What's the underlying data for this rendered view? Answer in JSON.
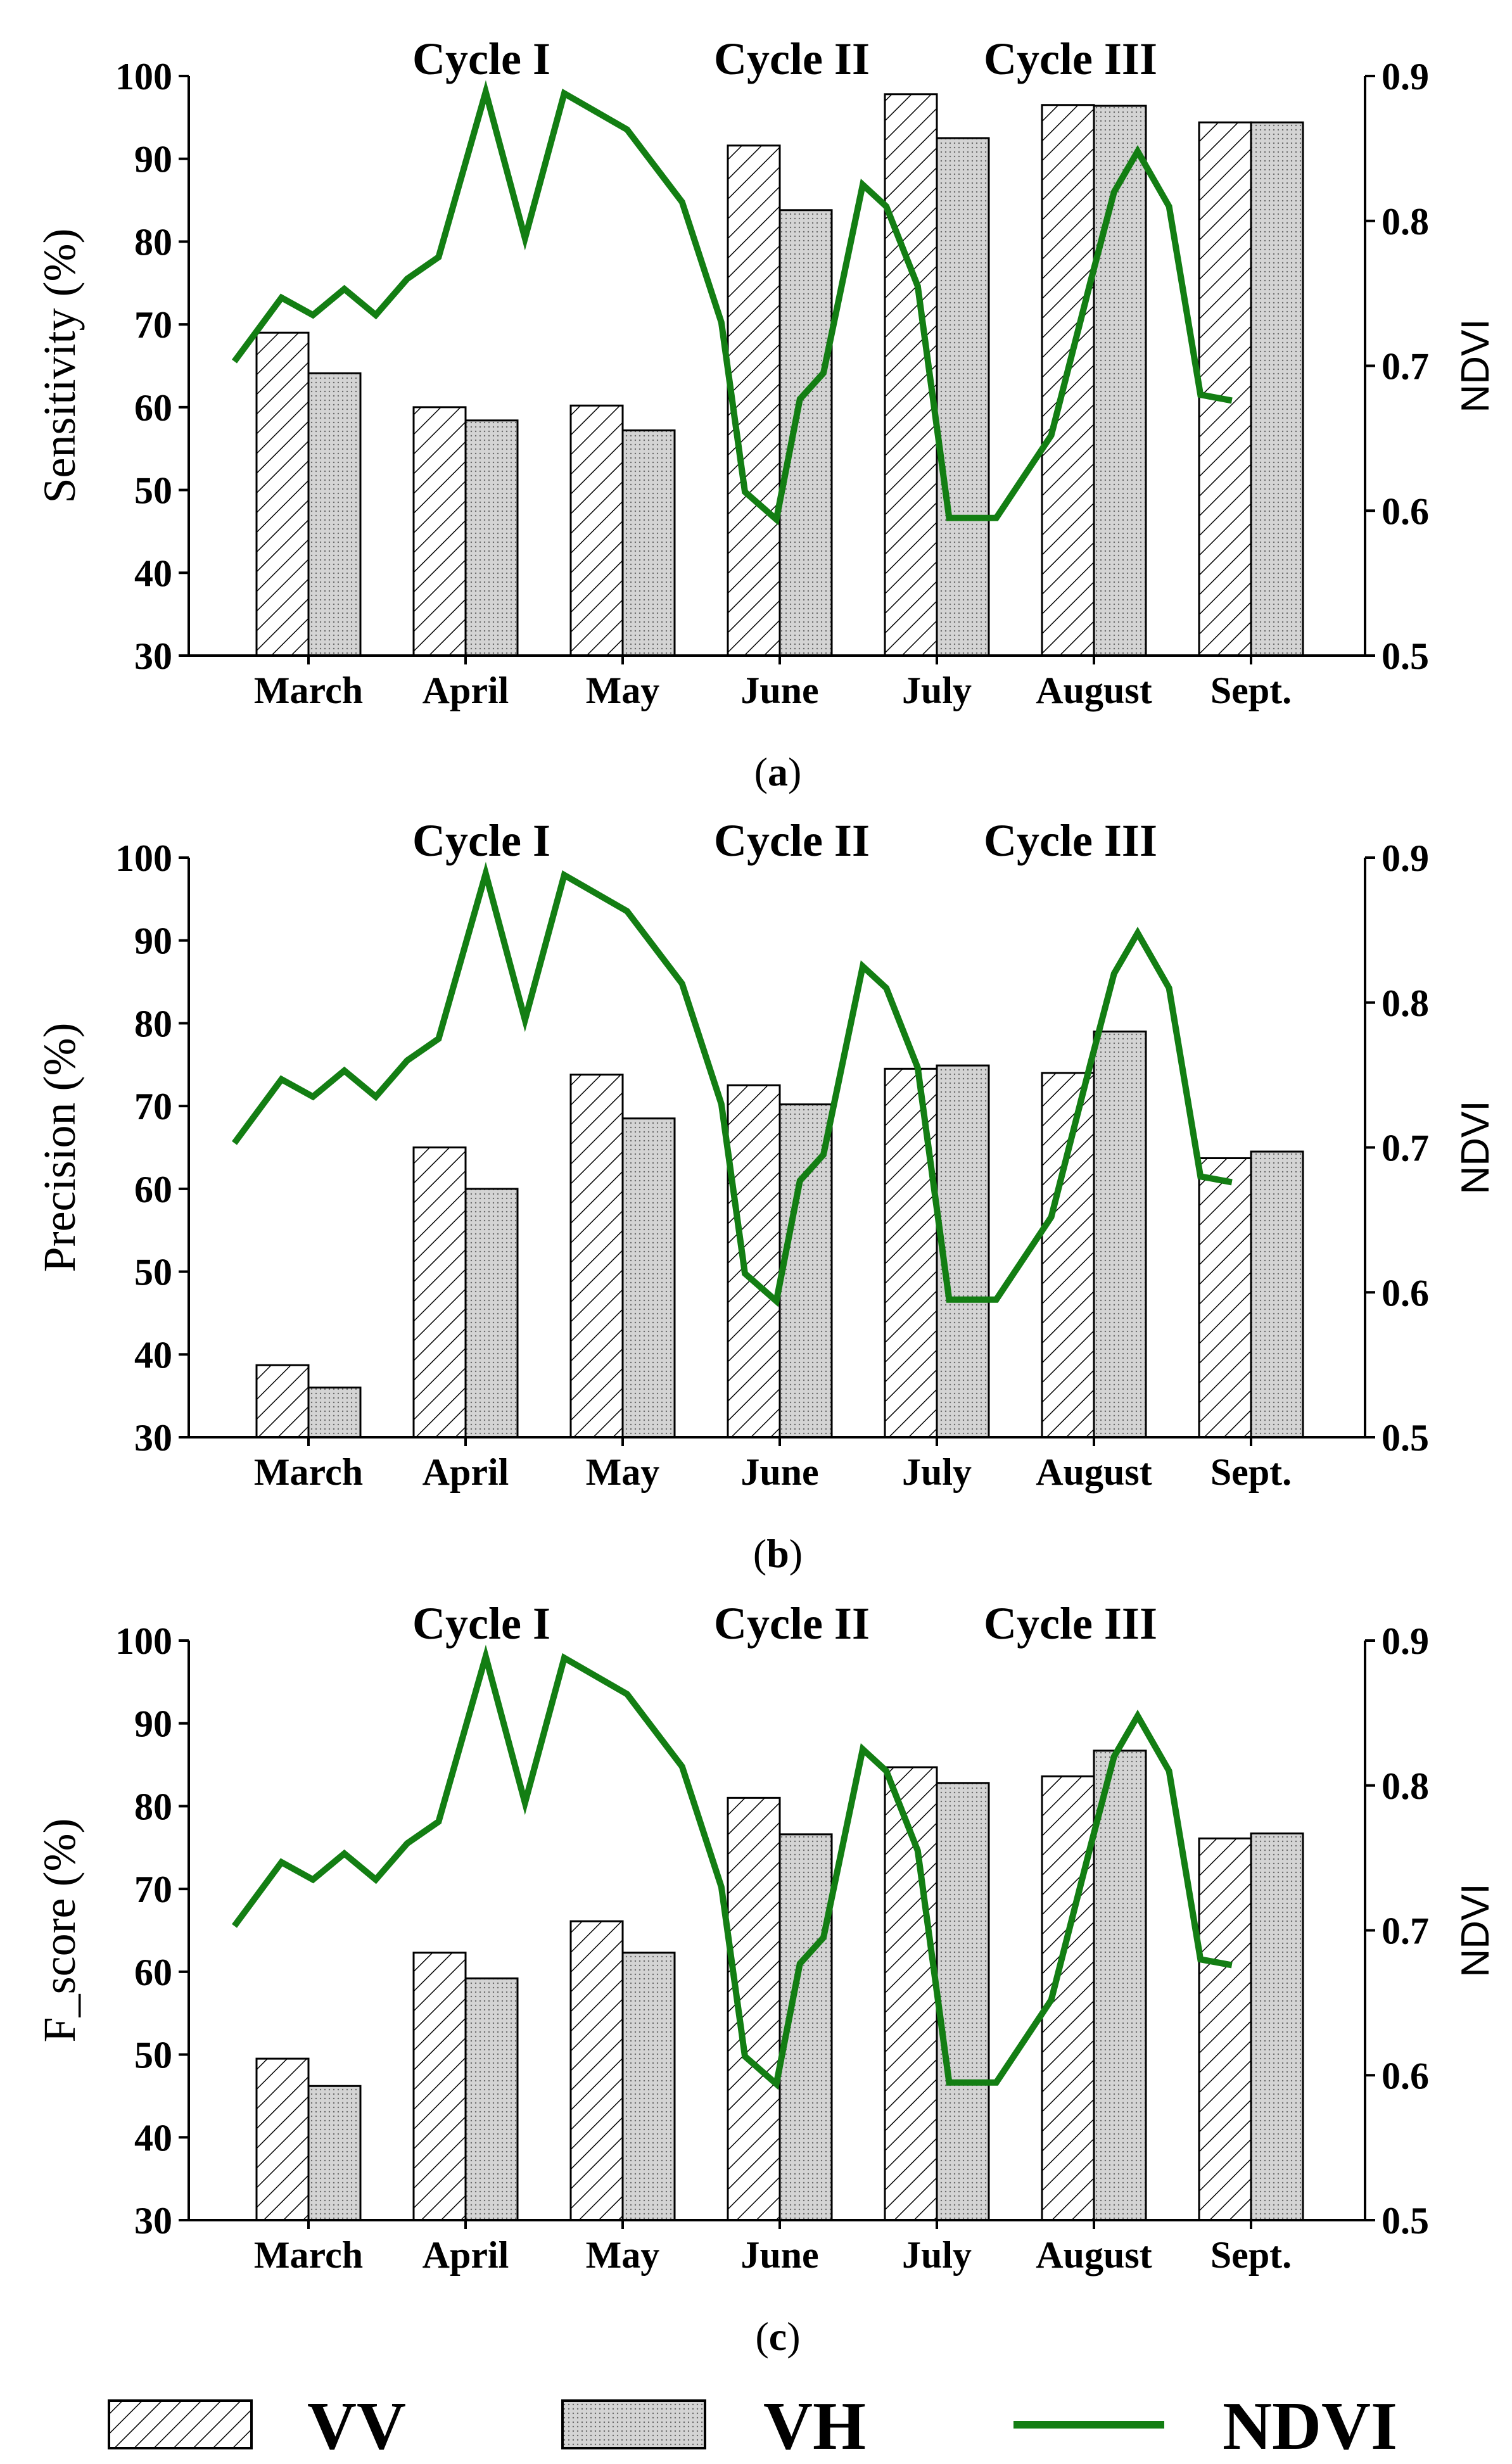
{
  "legend": {
    "vv_label": "VV",
    "vh_label": "VH",
    "ndvi_label": "NDVI"
  },
  "colors": {
    "ndvi_line": "#137e13",
    "vv_fill": "#ffffff",
    "vh_fill": "#d4d4d4",
    "bar_stroke": "#000000"
  },
  "cycle_labels": [
    "Cycle I",
    "Cycle II",
    "Cycle III"
  ],
  "chart_data": [
    {
      "type": "bar",
      "panel": "(a)",
      "ylabel": "Sensitivity (%)",
      "y2label": "NDVI",
      "ylim": [
        30,
        100
      ],
      "y2lim": [
        0.5,
        0.9
      ],
      "yticks": [
        30,
        40,
        50,
        60,
        70,
        80,
        90,
        100
      ],
      "y2ticks": [
        0.5,
        0.6,
        0.7,
        0.8,
        0.9
      ],
      "categories": [
        "March",
        "April",
        "May",
        "June",
        "July",
        "August",
        "Sept."
      ],
      "series": [
        {
          "name": "VV",
          "values": [
            69,
            60,
            60.2,
            91.6,
            97.8,
            96.5,
            94.4
          ]
        },
        {
          "name": "VH",
          "values": [
            64.1,
            58.4,
            57.2,
            83.8,
            92.5,
            96.4,
            94.4
          ]
        }
      ],
      "ndvi": {
        "name": "NDVI",
        "x": [
          0,
          0.3,
          0.5,
          0.7,
          0.9,
          1.1,
          1.3,
          1.6,
          1.85,
          2.1,
          2.5,
          2.85,
          3.1,
          3.25,
          3.45,
          3.6,
          3.75,
          4.0,
          4.15,
          4.35,
          4.55,
          4.85,
          5.2,
          5.45,
          5.6,
          5.75,
          5.95,
          6.15,
          6.35
        ],
        "y": [
          0.703,
          0.747,
          0.735,
          0.753,
          0.735,
          0.76,
          0.775,
          0.889,
          0.788,
          0.888,
          0.863,
          0.813,
          0.73,
          0.613,
          0.594,
          0.677,
          0.695,
          0.825,
          0.81,
          0.755,
          0.595,
          0.595,
          0.652,
          0.758,
          0.82,
          0.848,
          0.81,
          0.68,
          0.676
        ]
      }
    },
    {
      "type": "bar",
      "panel": "(b)",
      "ylabel": "Precision (%)",
      "y2label": "NDVI",
      "ylim": [
        30,
        100
      ],
      "y2lim": [
        0.5,
        0.9
      ],
      "yticks": [
        30,
        40,
        50,
        60,
        70,
        80,
        90,
        100
      ],
      "y2ticks": [
        0.5,
        0.6,
        0.7,
        0.8,
        0.9
      ],
      "categories": [
        "March",
        "April",
        "May",
        "June",
        "July",
        "August",
        "Sept."
      ],
      "series": [
        {
          "name": "VV",
          "values": [
            38.7,
            65,
            73.8,
            72.5,
            74.5,
            74,
            63.7
          ]
        },
        {
          "name": "VH",
          "values": [
            36,
            60,
            68.5,
            70.2,
            74.9,
            79,
            64.5
          ]
        }
      ],
      "ndvi": {
        "name": "NDVI",
        "x": [
          0,
          0.3,
          0.5,
          0.7,
          0.9,
          1.1,
          1.3,
          1.6,
          1.85,
          2.1,
          2.5,
          2.85,
          3.1,
          3.25,
          3.45,
          3.6,
          3.75,
          4.0,
          4.15,
          4.35,
          4.55,
          4.85,
          5.2,
          5.45,
          5.6,
          5.75,
          5.95,
          6.15,
          6.35
        ],
        "y": [
          0.703,
          0.747,
          0.735,
          0.753,
          0.735,
          0.76,
          0.775,
          0.889,
          0.788,
          0.888,
          0.863,
          0.813,
          0.73,
          0.613,
          0.594,
          0.677,
          0.695,
          0.825,
          0.81,
          0.755,
          0.595,
          0.595,
          0.652,
          0.758,
          0.82,
          0.848,
          0.81,
          0.68,
          0.676
        ]
      }
    },
    {
      "type": "bar",
      "panel": "(c)",
      "ylabel": "F_score (%)",
      "y2label": "NDVI",
      "ylim": [
        30,
        100
      ],
      "y2lim": [
        0.5,
        0.9
      ],
      "yticks": [
        30,
        40,
        50,
        60,
        70,
        80,
        90,
        100
      ],
      "y2ticks": [
        0.5,
        0.6,
        0.7,
        0.8,
        0.9
      ],
      "categories": [
        "March",
        "April",
        "May",
        "June",
        "July",
        "August",
        "Sept."
      ],
      "series": [
        {
          "name": "VV",
          "values": [
            49.5,
            62.3,
            66.1,
            81,
            84.7,
            83.6,
            76.1
          ]
        },
        {
          "name": "VH",
          "values": [
            46.2,
            59.2,
            62.3,
            76.6,
            82.8,
            86.7,
            76.7
          ]
        }
      ],
      "ndvi": {
        "name": "NDVI",
        "x": [
          0,
          0.3,
          0.5,
          0.7,
          0.9,
          1.1,
          1.3,
          1.6,
          1.85,
          2.1,
          2.5,
          2.85,
          3.1,
          3.25,
          3.45,
          3.6,
          3.75,
          4.0,
          4.15,
          4.35,
          4.55,
          4.85,
          5.2,
          5.45,
          5.6,
          5.75,
          5.95,
          6.15,
          6.35
        ],
        "y": [
          0.703,
          0.747,
          0.735,
          0.753,
          0.735,
          0.76,
          0.775,
          0.889,
          0.788,
          0.888,
          0.863,
          0.813,
          0.73,
          0.613,
          0.594,
          0.677,
          0.695,
          0.825,
          0.81,
          0.755,
          0.595,
          0.595,
          0.652,
          0.758,
          0.82,
          0.848,
          0.81,
          0.68,
          0.676
        ]
      }
    }
  ]
}
